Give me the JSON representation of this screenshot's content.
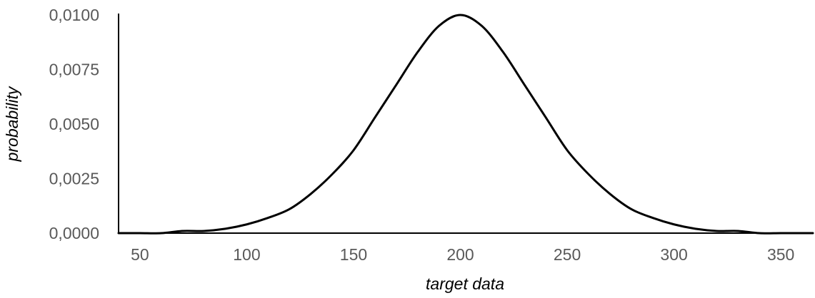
{
  "chart_data": {
    "type": "line",
    "title": "",
    "xlabel": "target data",
    "ylabel": "probability",
    "xlim": [
      40,
      365
    ],
    "ylim": [
      0,
      0.01
    ],
    "x_ticks": [
      50,
      100,
      150,
      200,
      250,
      300,
      350
    ],
    "x_tick_labels": [
      "50",
      "100",
      "150",
      "200",
      "250",
      "300",
      "350"
    ],
    "y_ticks": [
      0,
      0.0025,
      0.005,
      0.0075,
      0.01
    ],
    "y_tick_labels": [
      "0,0000",
      "0,0025",
      "0,0050",
      "0,0075",
      "0,0100"
    ],
    "grid": false,
    "legend": "none",
    "line_color": "#000000",
    "series": [
      {
        "x": [
          40,
          50,
          60,
          70,
          80,
          90,
          100,
          110,
          120,
          130,
          140,
          150,
          160,
          170,
          180,
          190,
          200,
          210,
          220,
          230,
          240,
          250,
          260,
          270,
          280,
          290,
          300,
          310,
          320,
          330,
          340,
          350,
          360,
          365
        ],
        "values": [
          0.0,
          0.0,
          0.0,
          0.0001,
          0.0001,
          0.0002,
          0.0004,
          0.0007,
          0.0011,
          0.0018,
          0.0027,
          0.0038,
          0.0053,
          0.0068,
          0.0083,
          0.0095,
          0.01,
          0.0095,
          0.0083,
          0.0068,
          0.0053,
          0.0038,
          0.0027,
          0.0018,
          0.0011,
          0.0007,
          0.0004,
          0.0002,
          0.0001,
          0.0001,
          0.0,
          0.0,
          0.0,
          0.0
        ]
      }
    ]
  }
}
